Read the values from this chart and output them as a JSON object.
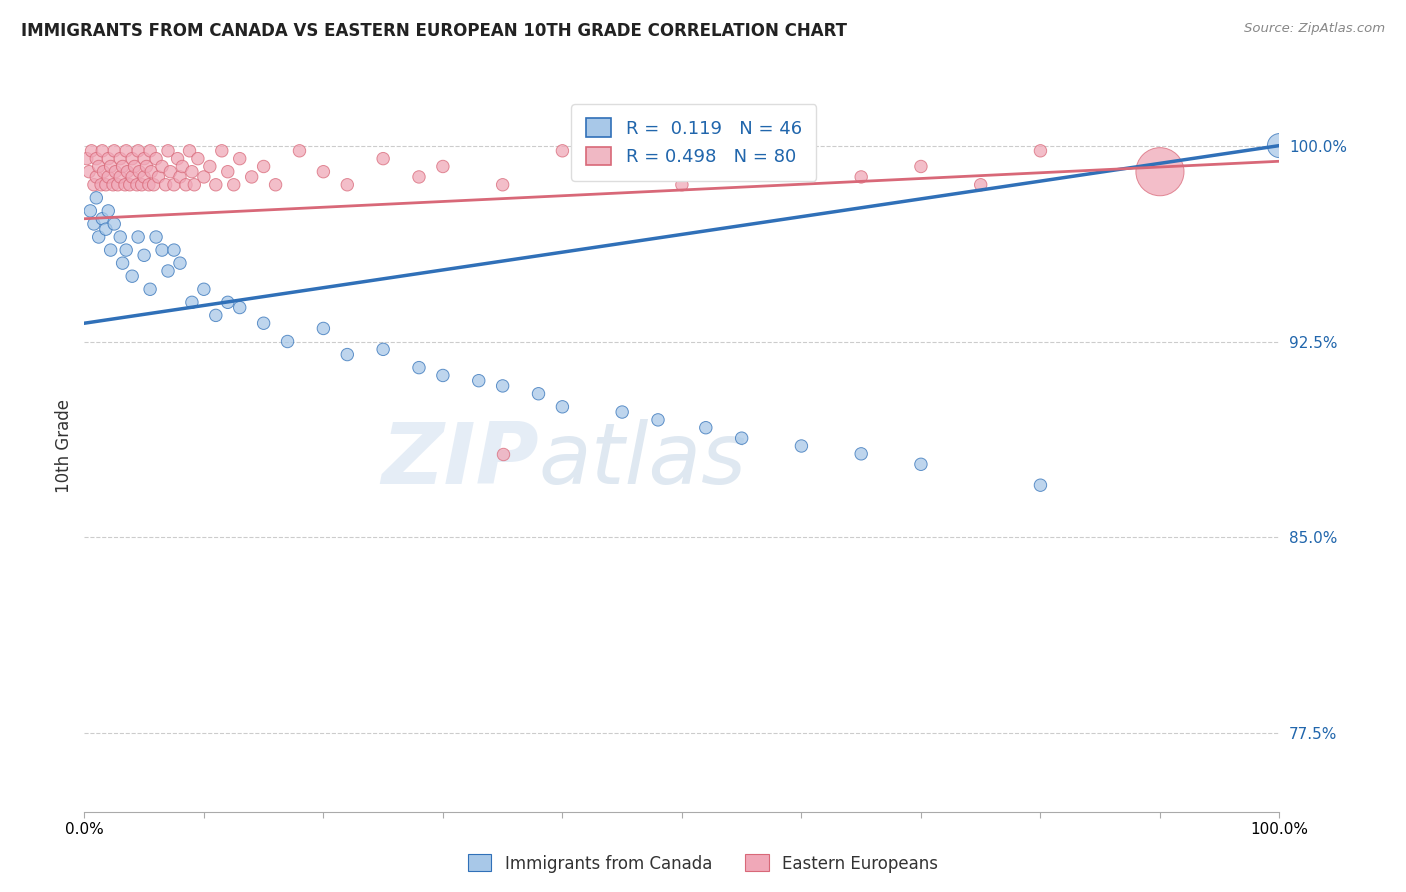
{
  "title": "IMMIGRANTS FROM CANADA VS EASTERN EUROPEAN 10TH GRADE CORRELATION CHART",
  "source": "Source: ZipAtlas.com",
  "ylabel": "10th Grade",
  "watermark": "ZIPatlas",
  "y_ticks": [
    0.775,
    0.85,
    0.925,
    1.0
  ],
  "y_tick_labels": [
    "77.5%",
    "85.0%",
    "92.5%",
    "100.0%"
  ],
  "x_range": [
    0.0,
    1.0
  ],
  "y_range": [
    0.745,
    1.025
  ],
  "blue_R": 0.119,
  "blue_N": 46,
  "pink_R": 0.498,
  "pink_N": 80,
  "blue_color": "#a8c8e8",
  "pink_color": "#f0a8b8",
  "blue_line_color": "#3070b8",
  "pink_line_color": "#d86878",
  "legend_box_blue": "#a8c8e8",
  "legend_box_pink": "#f0b8c4",
  "blue_scatter_x": [
    0.005,
    0.008,
    0.01,
    0.012,
    0.015,
    0.018,
    0.02,
    0.022,
    0.025,
    0.03,
    0.032,
    0.035,
    0.04,
    0.045,
    0.05,
    0.055,
    0.06,
    0.065,
    0.07,
    0.075,
    0.08,
    0.09,
    0.1,
    0.11,
    0.12,
    0.13,
    0.15,
    0.17,
    0.2,
    0.22,
    0.25,
    0.28,
    0.3,
    0.33,
    0.35,
    0.38,
    0.4,
    0.45,
    0.48,
    0.52,
    0.55,
    0.6,
    0.65,
    0.7,
    0.8,
    1.0
  ],
  "blue_scatter_y": [
    0.975,
    0.97,
    0.98,
    0.965,
    0.972,
    0.968,
    0.975,
    0.96,
    0.97,
    0.965,
    0.955,
    0.96,
    0.95,
    0.965,
    0.958,
    0.945,
    0.965,
    0.96,
    0.952,
    0.96,
    0.955,
    0.94,
    0.945,
    0.935,
    0.94,
    0.938,
    0.932,
    0.925,
    0.93,
    0.92,
    0.922,
    0.915,
    0.912,
    0.91,
    0.908,
    0.905,
    0.9,
    0.898,
    0.895,
    0.892,
    0.888,
    0.885,
    0.882,
    0.878,
    0.87,
    1.0
  ],
  "blue_scatter_size": [
    80,
    80,
    80,
    80,
    80,
    80,
    80,
    80,
    80,
    80,
    80,
    80,
    80,
    80,
    80,
    80,
    80,
    80,
    80,
    80,
    80,
    80,
    80,
    80,
    80,
    80,
    80,
    80,
    80,
    80,
    80,
    80,
    80,
    80,
    80,
    80,
    80,
    80,
    80,
    80,
    80,
    80,
    80,
    80,
    80,
    300
  ],
  "pink_scatter_x": [
    0.002,
    0.004,
    0.006,
    0.008,
    0.01,
    0.01,
    0.012,
    0.014,
    0.015,
    0.016,
    0.018,
    0.02,
    0.02,
    0.022,
    0.024,
    0.025,
    0.026,
    0.028,
    0.03,
    0.03,
    0.032,
    0.034,
    0.035,
    0.036,
    0.038,
    0.04,
    0.04,
    0.042,
    0.044,
    0.045,
    0.046,
    0.048,
    0.05,
    0.05,
    0.052,
    0.054,
    0.055,
    0.056,
    0.058,
    0.06,
    0.062,
    0.065,
    0.068,
    0.07,
    0.072,
    0.075,
    0.078,
    0.08,
    0.082,
    0.085,
    0.088,
    0.09,
    0.092,
    0.095,
    0.1,
    0.105,
    0.11,
    0.115,
    0.12,
    0.125,
    0.13,
    0.14,
    0.15,
    0.16,
    0.18,
    0.2,
    0.22,
    0.25,
    0.28,
    0.3,
    0.35,
    0.4,
    0.45,
    0.5,
    0.6,
    0.65,
    0.7,
    0.75,
    0.8,
    0.9
  ],
  "pink_scatter_y": [
    0.995,
    0.99,
    0.998,
    0.985,
    0.995,
    0.988,
    0.992,
    0.985,
    0.998,
    0.99,
    0.985,
    0.995,
    0.988,
    0.992,
    0.985,
    0.998,
    0.99,
    0.985,
    0.995,
    0.988,
    0.992,
    0.985,
    0.998,
    0.99,
    0.985,
    0.995,
    0.988,
    0.992,
    0.985,
    0.998,
    0.99,
    0.985,
    0.995,
    0.988,
    0.992,
    0.985,
    0.998,
    0.99,
    0.985,
    0.995,
    0.988,
    0.992,
    0.985,
    0.998,
    0.99,
    0.985,
    0.995,
    0.988,
    0.992,
    0.985,
    0.998,
    0.99,
    0.985,
    0.995,
    0.988,
    0.992,
    0.985,
    0.998,
    0.99,
    0.985,
    0.995,
    0.988,
    0.992,
    0.985,
    0.998,
    0.99,
    0.985,
    0.995,
    0.988,
    0.992,
    0.985,
    0.998,
    0.99,
    0.985,
    0.995,
    0.988,
    0.992,
    0.985,
    0.998,
    0.99
  ],
  "pink_scatter_size": [
    80,
    80,
    80,
    80,
    80,
    80,
    80,
    80,
    80,
    80,
    80,
    80,
    80,
    80,
    80,
    80,
    80,
    80,
    80,
    80,
    80,
    80,
    80,
    80,
    80,
    80,
    80,
    80,
    80,
    80,
    80,
    80,
    80,
    80,
    80,
    80,
    80,
    80,
    80,
    80,
    80,
    80,
    80,
    80,
    80,
    80,
    80,
    80,
    80,
    80,
    80,
    80,
    80,
    80,
    80,
    80,
    80,
    80,
    80,
    80,
    80,
    80,
    80,
    80,
    80,
    80,
    80,
    80,
    80,
    80,
    80,
    80,
    80,
    80,
    80,
    80,
    80,
    80,
    80,
    1200
  ],
  "pink_isolated_x": [
    0.35
  ],
  "pink_isolated_y": [
    0.882
  ],
  "pink_isolated_size": [
    80
  ],
  "blue_line_y_start": 0.932,
  "blue_line_y_end": 1.0,
  "pink_line_y_start": 0.972,
  "pink_line_y_end": 0.994,
  "background_color": "#ffffff",
  "grid_color": "#cccccc",
  "title_color": "#222222",
  "axis_color": "#555555"
}
